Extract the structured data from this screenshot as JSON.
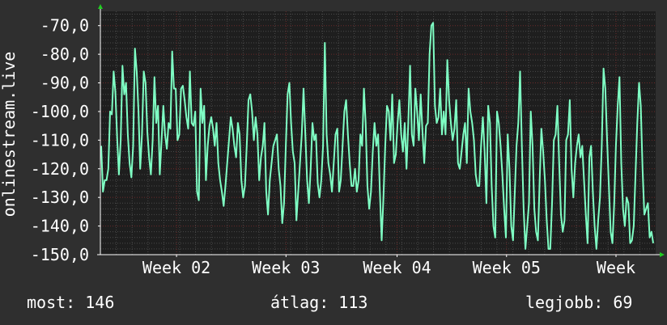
{
  "chart_data": {
    "type": "line",
    "ylabel": "onlinestream.live",
    "ylim": [
      -150,
      -65
    ],
    "yticks": [
      -70,
      -80,
      -90,
      -100,
      -110,
      -120,
      -130,
      -140,
      -150
    ],
    "ytick_labels": [
      "-70,0",
      "-80,0",
      "-90,0",
      "-100,0",
      "-110,0",
      "-120,0",
      "-130,0",
      "-140,0",
      "-150,0"
    ],
    "x_range_days": [
      0,
      35
    ],
    "xticks": [
      {
        "day": 4.8,
        "label": "Week 02"
      },
      {
        "day": 11.7,
        "label": "Week 03"
      },
      {
        "day": 18.7,
        "label": "Week 04"
      },
      {
        "day": 25.6,
        "label": "Week 05"
      },
      {
        "day": 32.5,
        "label": "Week"
      }
    ],
    "grid": true,
    "colors": {
      "background": "#2f2f2f",
      "plot": "#1e1e1e",
      "line": "#7fffc4",
      "grid_major": "#6b2a2a",
      "grid_minor": "#4a4a4a",
      "axis": "#ffffff",
      "arrow": "#22cc22"
    },
    "series": [
      {
        "values": [
          -112,
          -128,
          -124,
          -124,
          -120,
          -100,
          -101,
          -86,
          -93,
          -109,
          -122,
          -110,
          -84,
          -94,
          -90,
          -108,
          -118,
          -123,
          -112,
          -78,
          -86,
          -100,
          -120,
          -108,
          -86,
          -90,
          -107,
          -116,
          -122,
          -110,
          -88,
          -104,
          -98,
          -122,
          -110,
          -98,
          -108,
          -113,
          -104,
          -106,
          -79,
          -92,
          -92,
          -110,
          -108,
          -92,
          -91,
          -96,
          -102,
          -106,
          -86,
          -104,
          -105,
          -100,
          -128,
          -131,
          -92,
          -104,
          -98,
          -124,
          -112,
          -105,
          -102,
          -106,
          -112,
          -104,
          -118,
          -124,
          -128,
          -133,
          -126,
          -118,
          -110,
          -102,
          -106,
          -112,
          -116,
          -104,
          -108,
          -124,
          -130,
          -126,
          -112,
          -96,
          -94,
          -100,
          -110,
          -102,
          -108,
          -124,
          -116,
          -112,
          -104,
          -128,
          -136,
          -124,
          -118,
          -112,
          -110,
          -108,
          -120,
          -126,
          -139,
          -132,
          -112,
          -94,
          -90,
          -104,
          -114,
          -118,
          -138,
          -128,
          -118,
          -108,
          -92,
          -108,
          -124,
          -132,
          -120,
          -104,
          -110,
          -108,
          -125,
          -130,
          -124,
          -112,
          -76,
          -108,
          -118,
          -122,
          -128,
          -118,
          -108,
          -106,
          -128,
          -124,
          -112,
          -100,
          -96,
          -108,
          -118,
          -126,
          -126,
          -120,
          -128,
          -124,
          -108,
          -112,
          -92,
          -104,
          -126,
          -134,
          -128,
          -114,
          -104,
          -112,
          -108,
          -128,
          -145,
          -130,
          -112,
          -98,
          -100,
          -110,
          -94,
          -118,
          -115,
          -104,
          -96,
          -108,
          -114,
          -104,
          -120,
          -104,
          -84,
          -108,
          -112,
          -92,
          -100,
          -110,
          -94,
          -107,
          -118,
          -105,
          -104,
          -80,
          -70,
          -69,
          -98,
          -104,
          -102,
          -92,
          -108,
          -100,
          -108,
          -82,
          -96,
          -104,
          -110,
          -106,
          -96,
          -118,
          -120,
          -114,
          -108,
          -104,
          -118,
          -92,
          -100,
          -104,
          -110,
          -122,
          -126,
          -126,
          -112,
          -102,
          -114,
          -132,
          -98,
          -104,
          -126,
          -140,
          -144,
          -100,
          -104,
          -112,
          -122,
          -134,
          -144,
          -108,
          -120,
          -140,
          -145,
          -128,
          -112,
          -104,
          -86,
          -112,
          -134,
          -148,
          -140,
          -132,
          -100,
          -112,
          -134,
          -142,
          -145,
          -124,
          -106,
          -114,
          -124,
          -138,
          -148,
          -148,
          -132,
          -110,
          -108,
          -98,
          -118,
          -136,
          -142,
          -138,
          -110,
          -108,
          -96,
          -120,
          -130,
          -118,
          -112,
          -108,
          -116,
          -112,
          -124,
          -136,
          -146,
          -116,
          -112,
          -128,
          -140,
          -148,
          -138,
          -130,
          -112,
          -85,
          -92,
          -110,
          -126,
          -142,
          -146,
          -132,
          -112,
          -98,
          -88,
          -118,
          -134,
          -140,
          -130,
          -132,
          -146,
          -145,
          -140,
          -122,
          -104,
          -90,
          -98,
          -120,
          -136,
          -134,
          -132,
          -144,
          -142,
          -146
        ]
      }
    ]
  },
  "stats": {
    "now": "most: 146",
    "average": "átlag: 113",
    "best": "legjobb: 69"
  }
}
